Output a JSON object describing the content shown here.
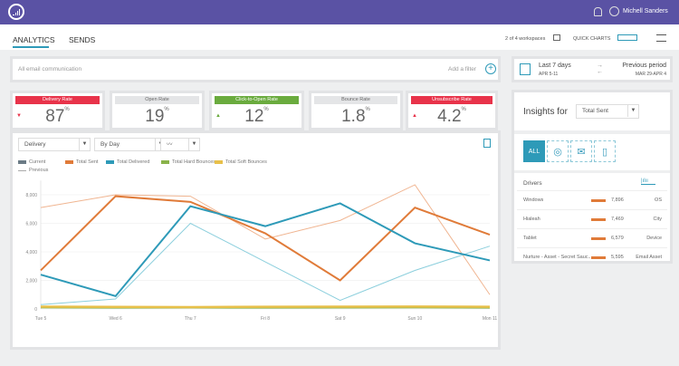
{
  "header": {
    "user_name": "Michell Sanders",
    "icons": [
      "logo",
      "bell-icon",
      "user-icon"
    ]
  },
  "tabs": [
    {
      "label": "ANALYTICS",
      "active": true
    },
    {
      "label": "SENDS"
    }
  ],
  "toolbar": {
    "workspaces": "2 of 4 workspaces",
    "quick_charts": "QUICK CHARTS"
  },
  "filter": {
    "placeholder": "All email communication",
    "add_filter": "Add a filter"
  },
  "date": {
    "current_label": "Last 7 days",
    "current_range": "APR 5-11",
    "previous_label": "Previous period",
    "previous_range": "MAR 29-APR 4"
  },
  "kpis": [
    {
      "label": "Delivery Rate",
      "value": "87",
      "unit": "%",
      "color": "#e8334a",
      "trend": "down"
    },
    {
      "label": "Open Rate",
      "value": "19",
      "unit": "%",
      "color": "#e4e5e7",
      "trend": ""
    },
    {
      "label": "Click-to-Open Rate",
      "value": "12",
      "unit": "%",
      "color": "#6aab3e",
      "trend": "up"
    },
    {
      "label": "Bounce Rate",
      "value": "1.8",
      "unit": "%",
      "color": "#e4e5e7",
      "trend": ""
    },
    {
      "label": "Unsubscribe Rate",
      "value": "4.2",
      "unit": "%",
      "color": "#e8334a",
      "trend": "up"
    }
  ],
  "chart_controls": {
    "metric": "Delivery",
    "interval": "By Day"
  },
  "chart_data": {
    "type": "line",
    "categories": [
      "Tue 5",
      "Wed 6",
      "Thu 7",
      "Fri 8",
      "Sat 9",
      "Sun 10",
      "Mon 11"
    ],
    "ylim": [
      0,
      9000
    ],
    "yticks": [
      "0",
      "2,000",
      "4,000",
      "6,000",
      "8,000"
    ],
    "ytick_values": [
      0,
      2000,
      4000,
      6000,
      8000
    ],
    "legend": [
      "Current",
      "Total Sent",
      "Total Delivered",
      "Total Hard Bounces",
      "Total Soft Bounces",
      "Previous"
    ],
    "series": [
      {
        "name": "Total Sent",
        "period": "Current",
        "color": "#e07b39",
        "values": [
          2700,
          7900,
          7500,
          5300,
          2000,
          7100,
          5200
        ]
      },
      {
        "name": "Total Delivered",
        "period": "Current",
        "color": "#2e9ab8",
        "values": [
          2400,
          900,
          7200,
          5800,
          7400,
          4600,
          3400
        ]
      },
      {
        "name": "Total Hard Bounces",
        "period": "Current",
        "color": "#8ab34a",
        "values": [
          120,
          100,
          110,
          100,
          110,
          120,
          100
        ]
      },
      {
        "name": "Total Soft Bounces",
        "period": "Current",
        "color": "#e8c04a",
        "values": [
          160,
          140,
          130,
          150,
          160,
          170,
          150
        ]
      },
      {
        "name": "Total Sent",
        "period": "Previous",
        "color": "#f0b591",
        "values": [
          7100,
          8000,
          7900,
          4900,
          6200,
          8700,
          1000
        ]
      },
      {
        "name": "Total Delivered",
        "period": "Previous",
        "color": "#8ccfdd",
        "values": [
          300,
          700,
          6000,
          3300,
          600,
          2700,
          4400
        ]
      }
    ]
  },
  "insights": {
    "title": "Insights for",
    "selected": "Total Sent",
    "filters": [
      "ALL",
      "user-icon",
      "mail-icon",
      "tablet-icon"
    ],
    "drivers_title": "Drivers",
    "drivers": [
      {
        "name": "Windows",
        "value": "7,896",
        "category": "OS"
      },
      {
        "name": "Hialeah",
        "value": "7,469",
        "category": "City"
      },
      {
        "name": "Tablet",
        "value": "6,579",
        "category": "Device"
      },
      {
        "name": "Nurture - Asset - Secret Sauc...",
        "value": "5,595",
        "category": "Email Asset"
      }
    ]
  }
}
